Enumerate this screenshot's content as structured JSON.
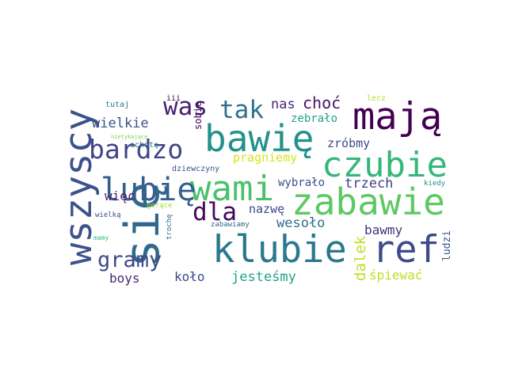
{
  "words": [
    {
      "text": "się",
      "color": "#31688e"
    },
    {
      "text": "wszyscy",
      "color": "#3b528b"
    },
    {
      "text": "bawię",
      "color": "#21918c"
    },
    {
      "text": "mają",
      "color": "#440154"
    },
    {
      "text": "klubie",
      "color": "#2a788e"
    },
    {
      "text": "ref",
      "color": "#3e4a89"
    },
    {
      "text": "zabawie",
      "color": "#5ec962"
    },
    {
      "text": "czubie",
      "color": "#35b779"
    },
    {
      "text": "wami",
      "color": "#4ac16d"
    },
    {
      "text": "lubię",
      "color": "#355f8d"
    },
    {
      "text": "bardzo",
      "color": "#414487"
    },
    {
      "text": "was",
      "color": "#482173"
    },
    {
      "text": "tak",
      "color": "#2c728e"
    },
    {
      "text": "dla",
      "color": "#46075a"
    },
    {
      "text": "gramy",
      "color": "#3e4989"
    },
    {
      "text": "choć",
      "color": "#471365"
    },
    {
      "text": "nas",
      "color": "#482878"
    },
    {
      "text": "wielkie",
      "color": "#3b528b"
    },
    {
      "text": "zebrało",
      "color": "#20a386"
    },
    {
      "text": "zróbmy",
      "color": "#3e4a89"
    },
    {
      "text": "pragniemy",
      "color": "#d8e219"
    },
    {
      "text": "wybrało",
      "color": "#3b528b"
    },
    {
      "text": "trzech",
      "color": "#424086"
    },
    {
      "text": "więc",
      "color": "#481f70"
    },
    {
      "text": "nazwę",
      "color": "#404688"
    },
    {
      "text": "wesoło",
      "color": "#2d708e"
    },
    {
      "text": "bawmy",
      "color": "#46327e"
    },
    {
      "text": "dalek",
      "color": "#c2df23"
    },
    {
      "text": "śpiewać",
      "color": "#bddf26"
    },
    {
      "text": "ludzi",
      "color": "#3b528b"
    },
    {
      "text": "jesteśmy",
      "color": "#20a386"
    },
    {
      "text": "koło",
      "color": "#3f4788"
    },
    {
      "text": "boys",
      "color": "#482979"
    },
    {
      "text": "sobie",
      "color": "#440154"
    },
    {
      "text": "tutaj",
      "color": "#2a788e"
    },
    {
      "text": "ochotę",
      "color": "#2c728e"
    },
    {
      "text": "dziewczyny",
      "color": "#3b528b"
    },
    {
      "text": "nietykające",
      "color": "#7ad151"
    },
    {
      "text": "iii",
      "color": "#440154"
    },
    {
      "text": "lecz",
      "color": "#b5de2b"
    },
    {
      "text": "kiedy",
      "color": "#21918c"
    },
    {
      "text": "gorące",
      "color": "#a5db36"
    },
    {
      "text": "trochę",
      "color": "#2c728e"
    },
    {
      "text": "wielką",
      "color": "#3e4a89"
    },
    {
      "text": "zabawiamy",
      "color": "#31688e"
    },
    {
      "text": "mamy",
      "color": "#38b977"
    }
  ]
}
